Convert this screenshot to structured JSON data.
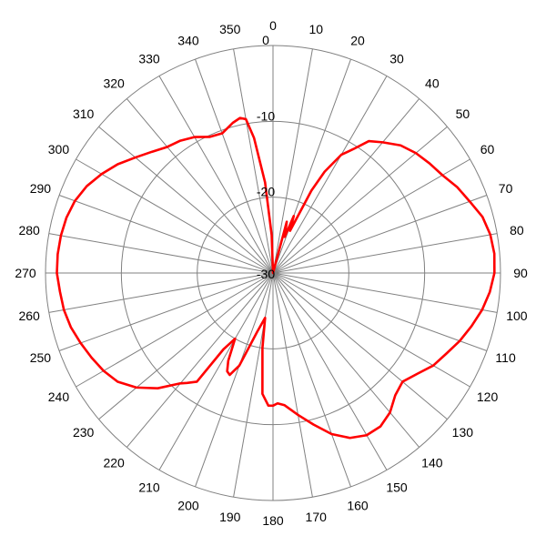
{
  "chart_data": {
    "type": "polar-line",
    "title": "",
    "angle_direction": "clockwise",
    "zero_at": "top",
    "angle_tick_step": 10,
    "angle_tick_labels": [
      "0",
      "10",
      "20",
      "30",
      "40",
      "50",
      "60",
      "70",
      "80",
      "90",
      "100",
      "110",
      "120",
      "130",
      "140",
      "150",
      "160",
      "170",
      "180",
      "190",
      "200",
      "210",
      "220",
      "230",
      "240",
      "250",
      "260",
      "270",
      "280",
      "290",
      "300",
      "310",
      "320",
      "330",
      "340",
      "350"
    ],
    "radial_range_db": [
      -30,
      0
    ],
    "radial_ticks": [
      0,
      -10,
      -20,
      -30
    ],
    "radial_tick_labels": [
      "0",
      "-10",
      "-20",
      "-30"
    ],
    "radial_label_angle": 0,
    "grid": true,
    "series": [
      {
        "color": "#ff0000",
        "angles": [
          0,
          5,
          10,
          15,
          18,
          20,
          22,
          25,
          27,
          30,
          33,
          36,
          40,
          45,
          50,
          55,
          60,
          65,
          70,
          75,
          80,
          85,
          90,
          95,
          100,
          105,
          110,
          115,
          120,
          125,
          130,
          135,
          140,
          145,
          150,
          155,
          160,
          165,
          170,
          175,
          178,
          180,
          182,
          185,
          188,
          190,
          195,
          200,
          203,
          205,
          207,
          210,
          213,
          215,
          218,
          220,
          225,
          230,
          235,
          240,
          245,
          250,
          255,
          260,
          265,
          270,
          275,
          280,
          285,
          290,
          295,
          300,
          305,
          310,
          315,
          320,
          325,
          330,
          335,
          340,
          345,
          348,
          350,
          352,
          355,
          358,
          360
        ],
        "values": [
          -30,
          -30,
          -30,
          -23,
          -25,
          -22,
          -24,
          -18,
          -15,
          -12,
          -10.5,
          -8.5,
          -7.5,
          -6.2,
          -5.4,
          -4.8,
          -4.2,
          -3.2,
          -2.4,
          -1.4,
          -0.9,
          -0.7,
          -0.8,
          -1.3,
          -2.0,
          -2.9,
          -3.8,
          -4.8,
          -5.6,
          -6.8,
          -7.7,
          -7.2,
          -6.0,
          -5.3,
          -5.3,
          -6.0,
          -7.4,
          -9.3,
          -11.0,
          -12.5,
          -12.8,
          -12.5,
          -12.5,
          -14,
          -20,
          -24,
          -22,
          -17,
          -15.4,
          -15.7,
          -17,
          -20,
          -18,
          -12.5,
          -11.6,
          -11,
          -8.5,
          -6.5,
          -5.0,
          -4.2,
          -3.6,
          -3.0,
          -2.4,
          -2.0,
          -1.8,
          -1.5,
          -1.5,
          -1.6,
          -1.8,
          -2.2,
          -2.9,
          -3.9,
          -5.0,
          -6.3,
          -7.4,
          -8.3,
          -8.7,
          -9.3,
          -10.2,
          -10.4,
          -9.5,
          -9.1,
          -9.4,
          -12,
          -18,
          -25,
          -30
        ]
      }
    ]
  }
}
